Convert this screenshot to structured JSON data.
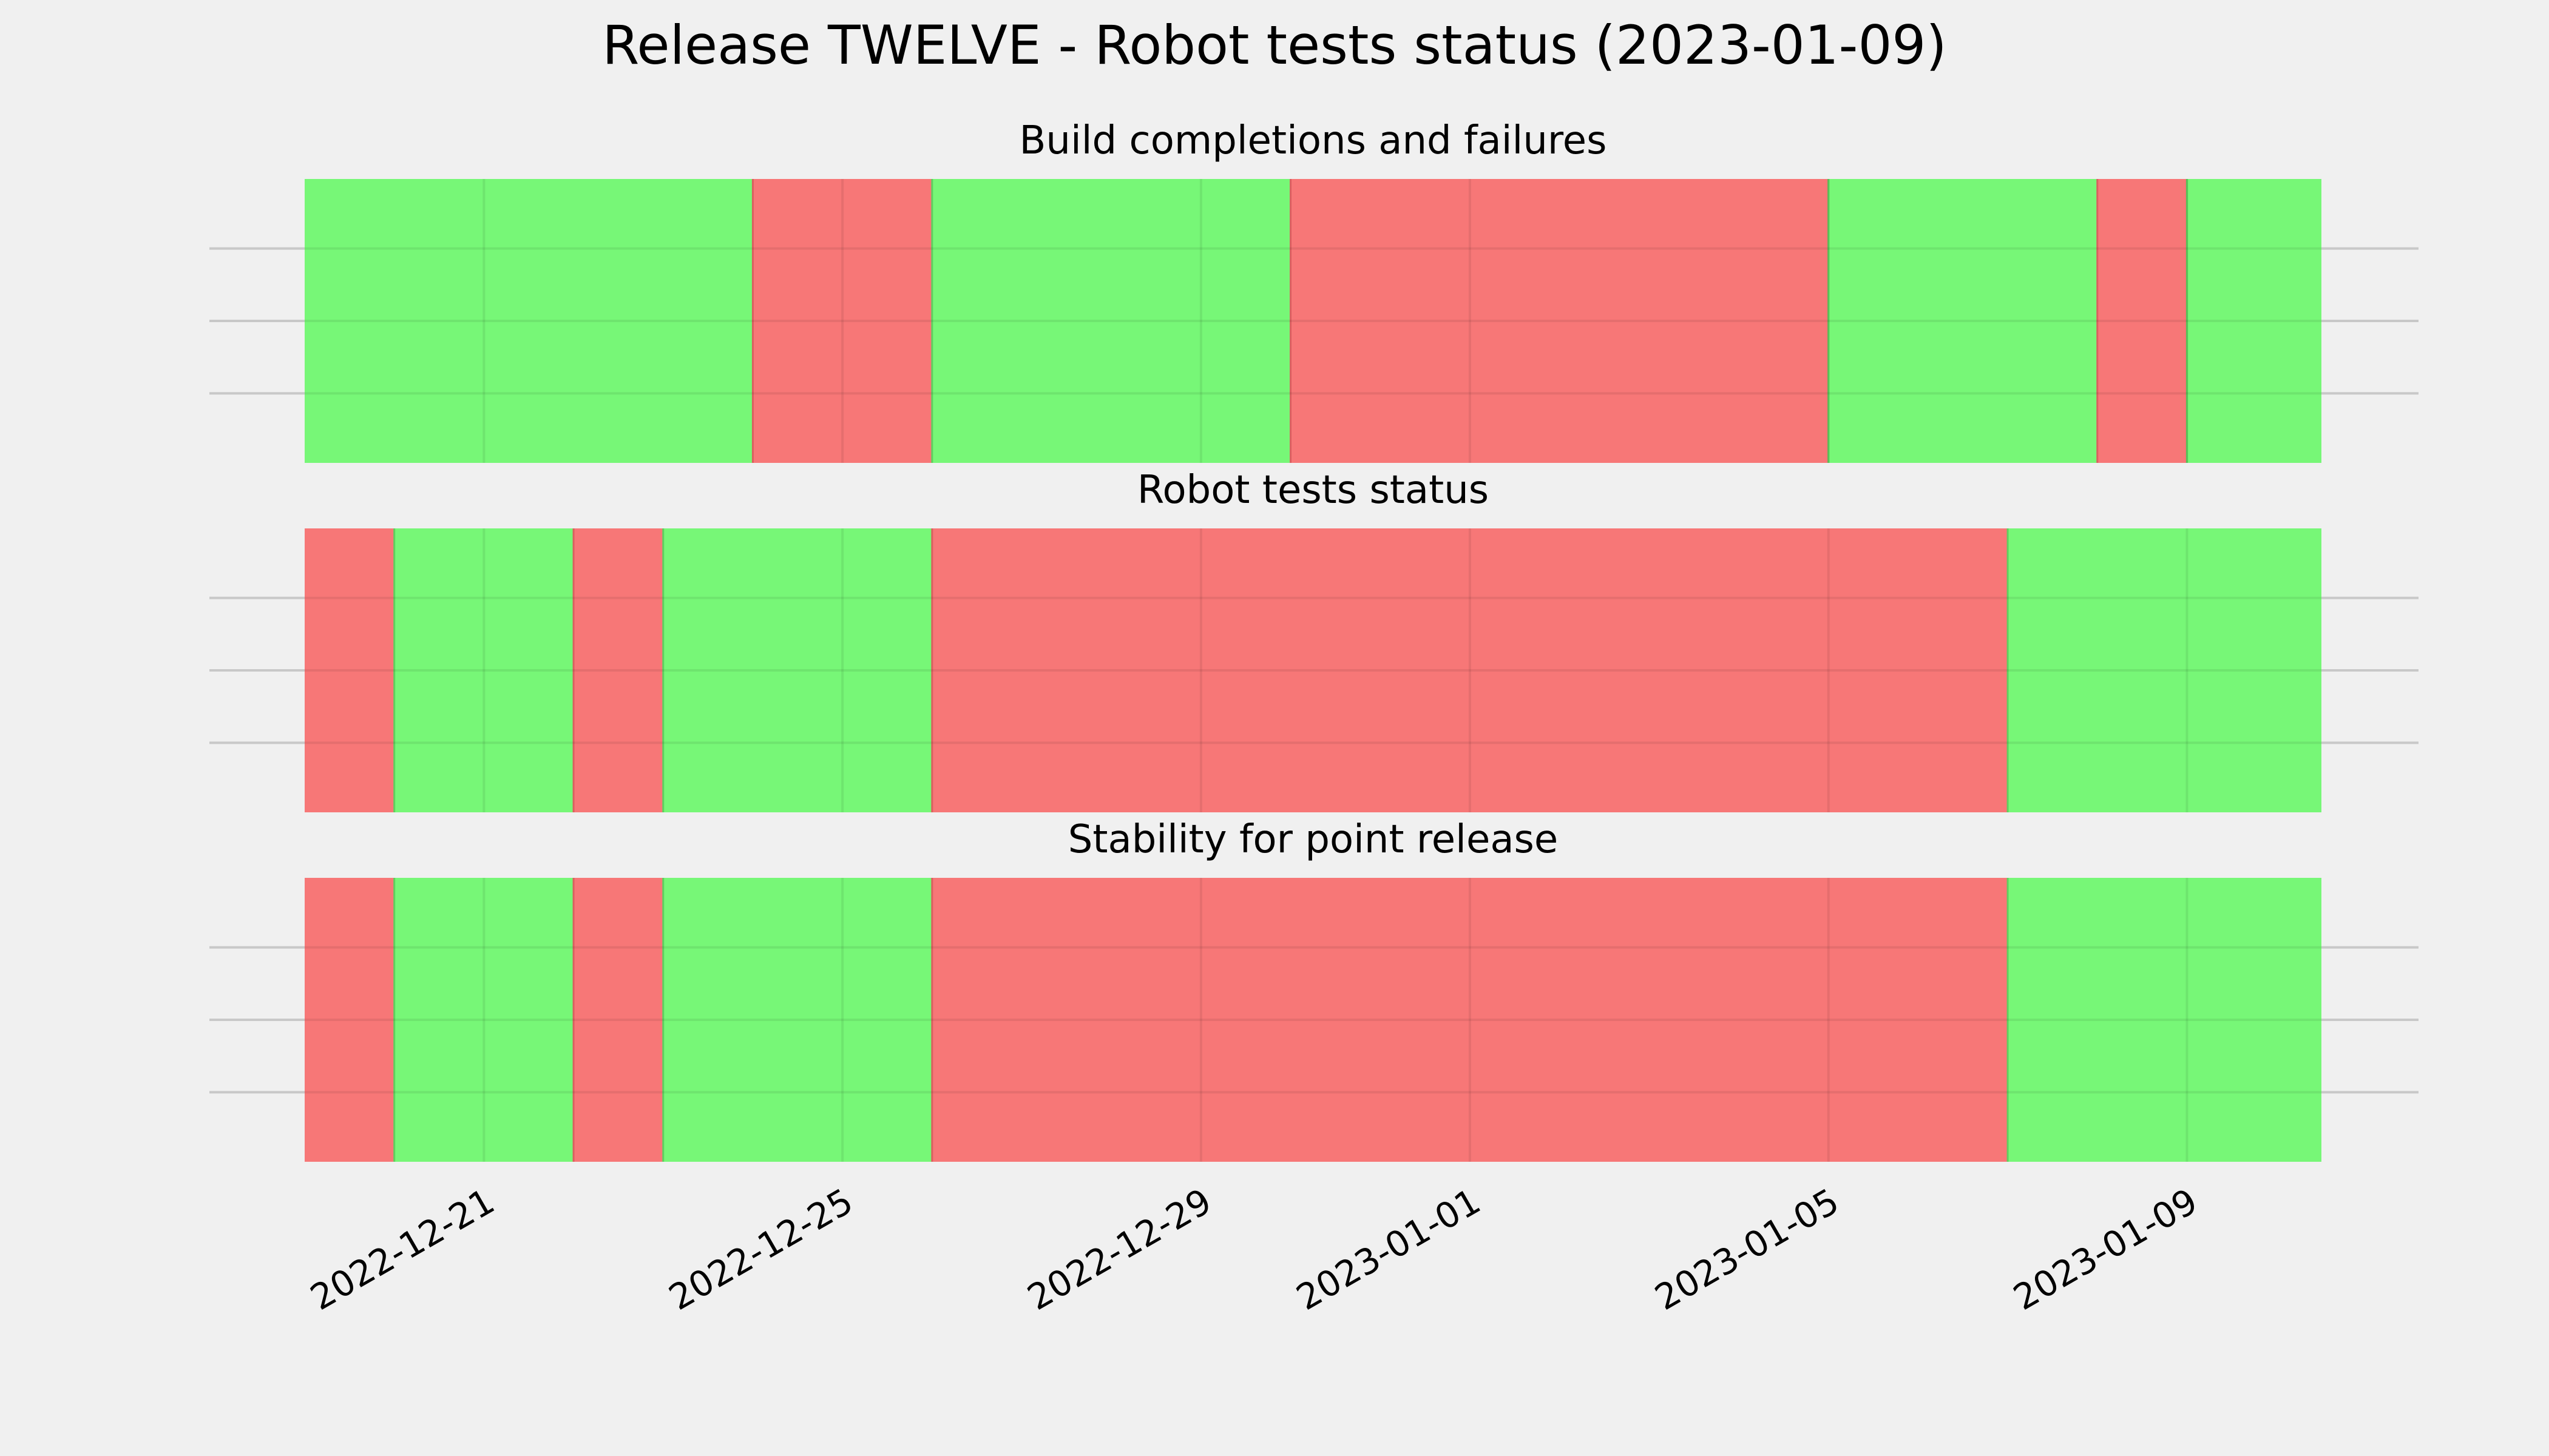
{
  "chart_data": {
    "type": "timeline",
    "title": "Release TWELVE - Robot tests status (2023-01-09)",
    "x_axis": {
      "start": "2022-12-19",
      "end": "2023-01-10T12:00",
      "tick_labels": [
        "2022-12-21",
        "2022-12-25",
        "2022-12-29",
        "2023-01-01",
        "2023-01-05",
        "2023-01-09"
      ]
    },
    "colors": {
      "pass": "#77f777",
      "fail": "#f77777",
      "background": "#f0f0f0"
    },
    "grid": true,
    "panels": [
      {
        "title": "Build completions and failures",
        "segments": [
          {
            "start": "2022-12-19",
            "end": "2022-12-24",
            "status": "pass"
          },
          {
            "start": "2022-12-24",
            "end": "2022-12-26",
            "status": "fail"
          },
          {
            "start": "2022-12-26",
            "end": "2022-12-30",
            "status": "pass"
          },
          {
            "start": "2022-12-30",
            "end": "2023-01-05",
            "status": "fail"
          },
          {
            "start": "2023-01-05",
            "end": "2023-01-08",
            "status": "pass"
          },
          {
            "start": "2023-01-08",
            "end": "2023-01-09",
            "status": "fail"
          },
          {
            "start": "2023-01-09",
            "end": "2023-01-10T12:00",
            "status": "pass"
          }
        ]
      },
      {
        "title": "Robot tests status",
        "segments": [
          {
            "start": "2022-12-19",
            "end": "2022-12-20",
            "status": "fail"
          },
          {
            "start": "2022-12-20",
            "end": "2022-12-22",
            "status": "pass"
          },
          {
            "start": "2022-12-22",
            "end": "2022-12-23",
            "status": "fail"
          },
          {
            "start": "2022-12-23",
            "end": "2022-12-26",
            "status": "pass"
          },
          {
            "start": "2022-12-26",
            "end": "2023-01-07",
            "status": "fail"
          },
          {
            "start": "2023-01-07",
            "end": "2023-01-10T12:00",
            "status": "pass"
          }
        ]
      },
      {
        "title": "Stability for point release",
        "segments": [
          {
            "start": "2022-12-19",
            "end": "2022-12-20",
            "status": "fail"
          },
          {
            "start": "2022-12-20",
            "end": "2022-12-22",
            "status": "pass"
          },
          {
            "start": "2022-12-22",
            "end": "2022-12-23",
            "status": "fail"
          },
          {
            "start": "2022-12-23",
            "end": "2022-12-26",
            "status": "pass"
          },
          {
            "start": "2022-12-26",
            "end": "2023-01-07",
            "status": "fail"
          },
          {
            "start": "2023-01-07",
            "end": "2023-01-10T12:00",
            "status": "pass"
          }
        ]
      }
    ]
  }
}
